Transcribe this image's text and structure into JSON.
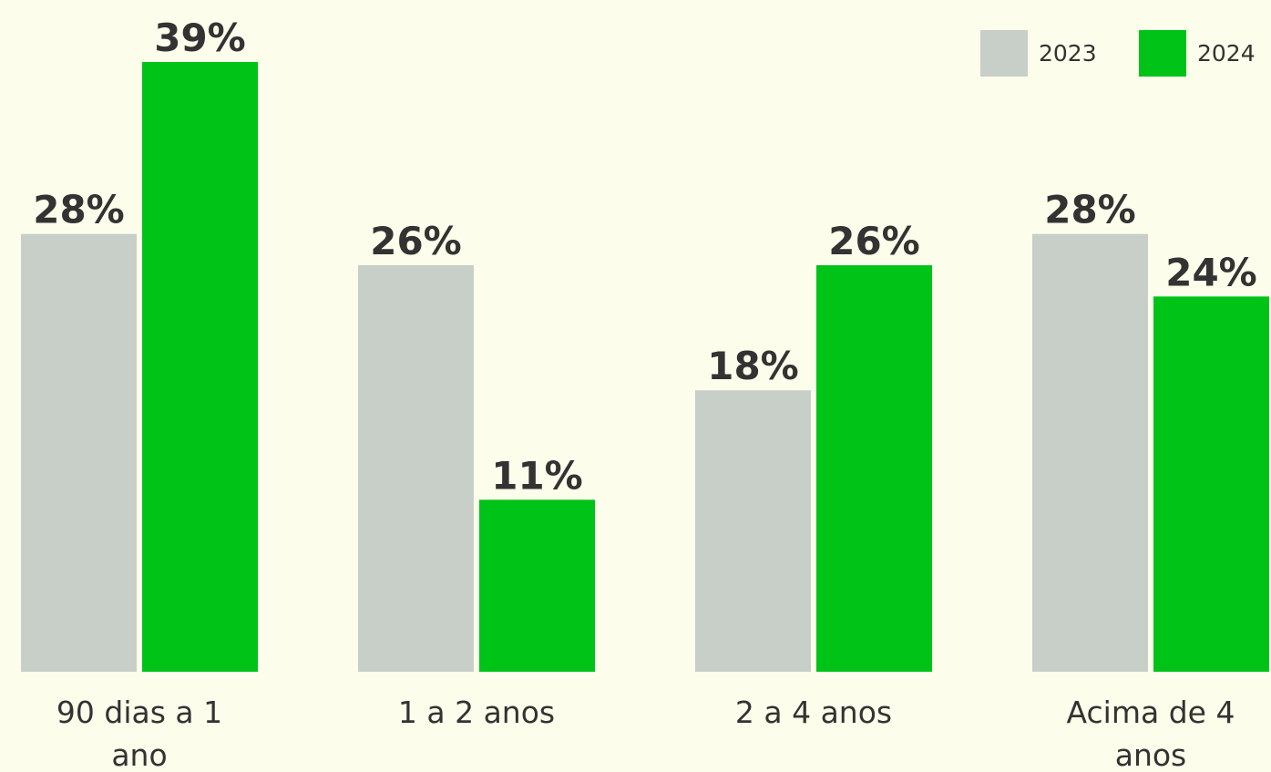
{
  "chart_data": {
    "type": "bar",
    "categories": [
      "90 dias a 1 ano",
      "1 a 2 anos",
      "2 a 4 anos",
      "Acima de 4 anos"
    ],
    "series": [
      {
        "name": "2023",
        "color": "#c8cfc8",
        "values": [
          28,
          26,
          18,
          28
        ],
        "value_labels": [
          "28%",
          "26%",
          "18%",
          "28%"
        ]
      },
      {
        "name": "2024",
        "color": "#00c318",
        "values": [
          39,
          11,
          26,
          24
        ],
        "value_labels": [
          "39%",
          "11%",
          "26%",
          "24%"
        ]
      }
    ],
    "legend": "top-right"
  }
}
